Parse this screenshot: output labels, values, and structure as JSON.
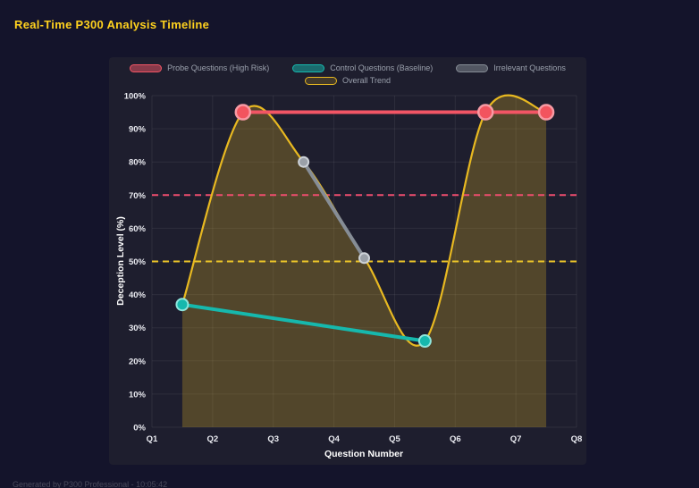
{
  "header": {
    "title": "Real-Time P300 Analysis Timeline"
  },
  "footer": {
    "text": "Generated by P300 Professional - 10:05:42"
  },
  "colors": {
    "page_bg": "#14142b",
    "panel_bg": "#1e1e2e",
    "title": "#ffd21e",
    "probe": "#f25565",
    "control": "#16b8ad",
    "irrelevant": "#868d96",
    "trend": "#e8b921",
    "threshold_high": "#ee4d6e",
    "threshold_mid": "#edc629"
  },
  "chart_data": {
    "type": "line",
    "title": "Real-Time P300 Analysis Timeline",
    "xlabel": "Question Number",
    "ylabel": "Deception Level (%)",
    "x_ticks": [
      "Q1",
      "Q2",
      "Q3",
      "Q4",
      "Q5",
      "Q6",
      "Q7",
      "Q8"
    ],
    "x_range": [
      1,
      8
    ],
    "y_ticks": [
      "0%",
      "10%",
      "20%",
      "30%",
      "40%",
      "50%",
      "60%",
      "70%",
      "80%",
      "90%",
      "100%"
    ],
    "y_range": [
      0,
      100
    ],
    "legend_rows": [
      [
        0,
        1,
        2
      ],
      [
        3
      ]
    ],
    "series": [
      {
        "name": "Probe Questions (High Risk)",
        "style": "line",
        "color": "#f25565",
        "line_width": 4,
        "marker": {
          "radius": 8,
          "fill": "#f2545e",
          "stroke": "#f79aa4",
          "stroke_width": 2.5
        },
        "swatch": {
          "fill": "rgba(242,85,101,0.5)",
          "border": "#f25565"
        },
        "points": [
          [
            2.5,
            95
          ],
          [
            6.5,
            95
          ],
          [
            7.5,
            95
          ]
        ]
      },
      {
        "name": "Control Questions (Baseline)",
        "style": "line",
        "color": "#16b8ad",
        "line_width": 4,
        "marker": {
          "radius": 6.5,
          "fill": "#16b8ad",
          "stroke": "#8fe6dd",
          "stroke_width": 2
        },
        "swatch": {
          "fill": "rgba(22,184,173,0.5)",
          "border": "#16b8ad"
        },
        "points": [
          [
            1.5,
            37
          ],
          [
            5.5,
            26
          ]
        ]
      },
      {
        "name": "Irrelevant Questions",
        "style": "line",
        "color": "#868d96",
        "line_width": 4,
        "marker": {
          "radius": 5.5,
          "fill": "#9aa0a8",
          "stroke": "#cdd2d8",
          "stroke_width": 2
        },
        "swatch": {
          "fill": "rgba(134,141,150,0.5)",
          "border": "#868d96"
        },
        "points": [
          [
            3.5,
            80
          ],
          [
            4.5,
            51
          ]
        ]
      },
      {
        "name": "Overall Trend",
        "style": "smooth-area",
        "color": "#e8b921",
        "line_width": 2.2,
        "fill": "rgba(232,185,33,0.26)",
        "swatch": {
          "fill": "rgba(232,185,33,0.18)",
          "border": "#e8b921"
        },
        "points": [
          [
            1.5,
            37
          ],
          [
            2.5,
            95
          ],
          [
            3.5,
            80
          ],
          [
            4.5,
            51
          ],
          [
            5.5,
            26
          ],
          [
            6.5,
            95
          ],
          [
            7.5,
            95
          ]
        ]
      }
    ],
    "thresholds": [
      {
        "value": 70,
        "color": "#ee4d6e"
      },
      {
        "value": 50,
        "color": "#edc629"
      }
    ]
  }
}
